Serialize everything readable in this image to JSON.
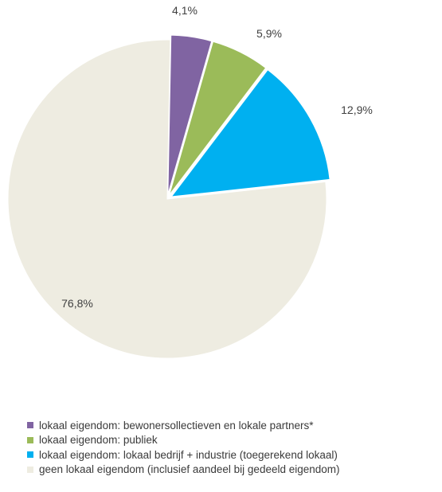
{
  "chart_data": {
    "type": "pie",
    "title": "",
    "slices": [
      {
        "label": "lokaal eigendom: bewonersollectieven en lokale partners*",
        "value": 4.1,
        "display": "4,1%",
        "color": "#8064a2"
      },
      {
        "label": "lokaal eigendom: publiek",
        "value": 5.9,
        "display": "5,9%",
        "color": "#9bbb59"
      },
      {
        "label": "lokaal eigendom: lokaal bedrijf + industrie (toegerekend lokaal)",
        "value": 12.9,
        "display": "12,9%",
        "color": "#00b0f0"
      },
      {
        "label": "geen lokaal eigendom (inclusief aandeel bij gedeeld eigendom)",
        "value": 76.8,
        "display": "76,8%",
        "color": "#eeece1"
      }
    ],
    "start_angle_deg": 1.1,
    "exploded": true,
    "legend_position": "bottom"
  }
}
